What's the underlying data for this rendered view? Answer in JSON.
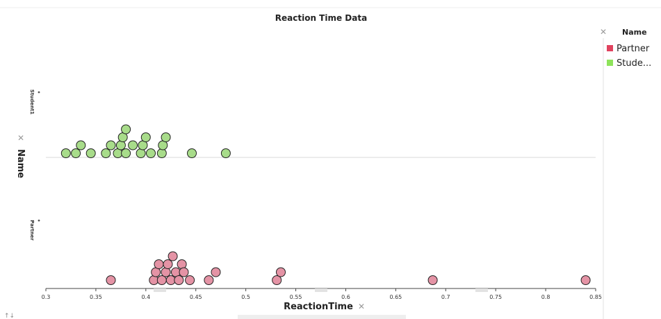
{
  "chart_data": {
    "type": "scatter",
    "title": "Reaction Time Data",
    "xlabel": "ReactionTime",
    "ylabel": "Name",
    "xlim": [
      0.3,
      0.85
    ],
    "xticks": [
      "0.3",
      "0.35",
      "0.4",
      "0.45",
      "0.5",
      "0.55",
      "0.6",
      "0.65",
      "0.7",
      "0.75",
      "0.8",
      "0.85"
    ],
    "categories": [
      "Student1",
      "Partner"
    ],
    "legend": {
      "title": "Name",
      "position": "right",
      "entries": [
        "Partner",
        "Stude..."
      ]
    },
    "series": [
      {
        "category": "Student1",
        "color": "#a8dc8a",
        "values": [
          0.32,
          0.33,
          0.335,
          0.345,
          0.36,
          0.365,
          0.372,
          0.375,
          0.377,
          0.38,
          0.38,
          0.387,
          0.395,
          0.397,
          0.4,
          0.405,
          0.416,
          0.417,
          0.42,
          0.446,
          0.48
        ]
      },
      {
        "category": "Partner",
        "color": "#e493a5",
        "values": [
          0.365,
          0.408,
          0.41,
          0.413,
          0.416,
          0.42,
          0.422,
          0.425,
          0.427,
          0.43,
          0.433,
          0.436,
          0.438,
          0.444,
          0.463,
          0.47,
          0.531,
          0.535,
          0.687,
          0.84
        ]
      }
    ],
    "legend_colors": [
      "#e0425e",
      "#8ee35b"
    ]
  }
}
